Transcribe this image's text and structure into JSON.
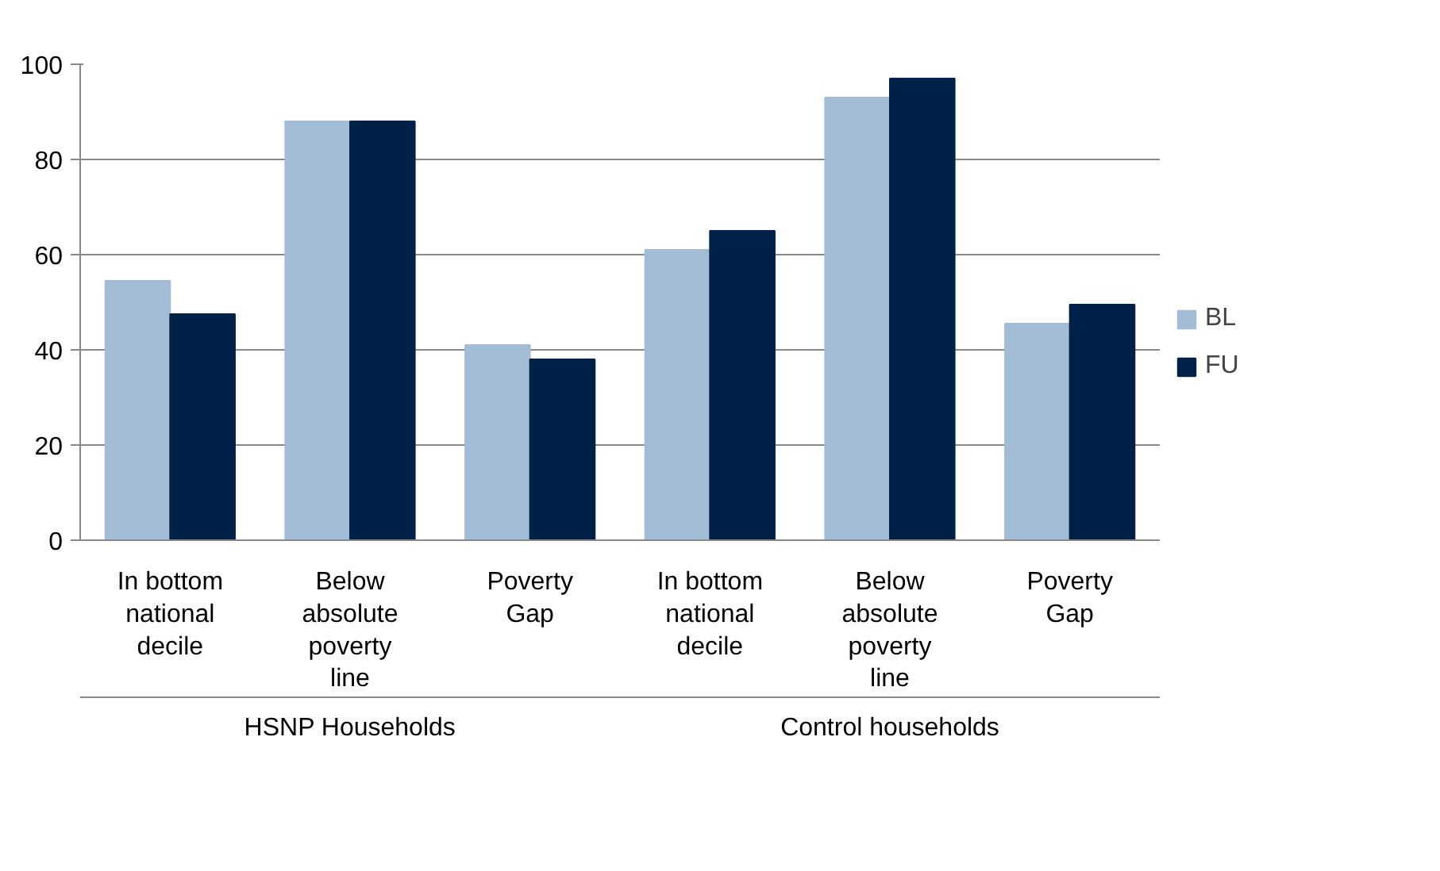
{
  "chart_data": {
    "type": "bar",
    "categories": [
      "In bottom national decile",
      "Below absolute poverty line",
      "Poverty Gap",
      "In bottom national decile",
      "Below absolute poverty line",
      "Poverty Gap"
    ],
    "series": [
      {
        "name": "BL",
        "color": "#a3bcd6",
        "values": [
          54.5,
          88,
          41,
          61,
          93,
          45.5
        ]
      },
      {
        "name": "FU",
        "color": "#002147",
        "values": [
          47.5,
          88,
          38,
          65,
          97,
          49.5
        ]
      }
    ],
    "annotations": [
      "HSNP Households",
      "Control households"
    ],
    "ylim": [
      0,
      100
    ],
    "yticks": [
      0,
      20,
      40,
      60,
      80,
      100
    ],
    "grid": "y",
    "legend": "right"
  }
}
